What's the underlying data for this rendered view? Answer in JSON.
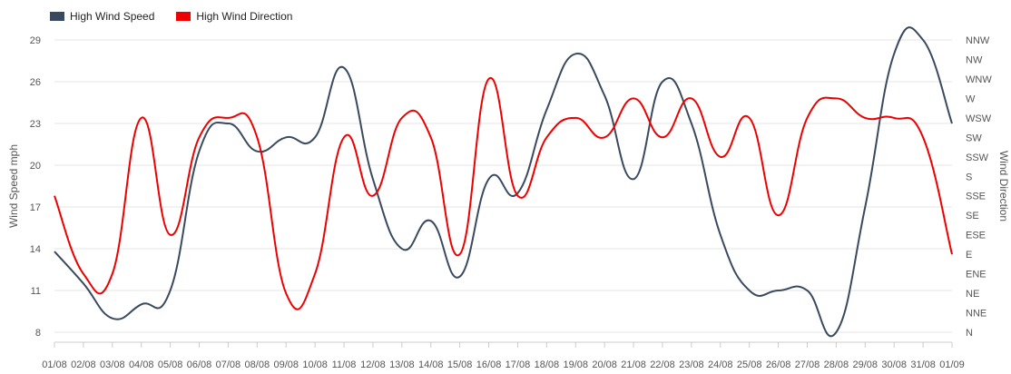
{
  "chart_data": {
    "type": "line",
    "x": [
      "01/08",
      "02/08",
      "03/08",
      "04/08",
      "05/08",
      "06/08",
      "07/08",
      "08/08",
      "09/08",
      "10/08",
      "11/08",
      "12/08",
      "13/08",
      "14/08",
      "15/08",
      "16/08",
      "17/08",
      "18/08",
      "19/08",
      "20/08",
      "21/08",
      "22/08",
      "23/08",
      "24/08",
      "25/08",
      "26/08",
      "27/08",
      "28/08",
      "29/08",
      "30/08",
      "31/08",
      "01/09"
    ],
    "xlabel": "",
    "ylabel": "Wind Speed mph",
    "y2label": "Wind Direction",
    "ylim": [
      8,
      29
    ],
    "yticks": [
      8,
      11,
      14,
      17,
      20,
      23,
      26,
      29
    ],
    "y2ticks": [
      "N",
      "NNE",
      "NE",
      "ENE",
      "E",
      "ESE",
      "SE",
      "SSE",
      "S",
      "SSW",
      "SW",
      "WSW",
      "W",
      "WNW",
      "NW",
      "NNW"
    ],
    "grid": true,
    "legend_position": "top-left",
    "series": [
      {
        "name": "High Wind Speed",
        "axis": "left",
        "color": "#3a4a5e",
        "values": [
          13.8,
          11.5,
          9.0,
          10.0,
          11.0,
          21.0,
          23.0,
          21.0,
          22.0,
          22.0,
          27.0,
          19.0,
          14.0,
          16.0,
          12.0,
          19.0,
          18.0,
          24.0,
          28.0,
          25.0,
          19.0,
          26.0,
          23.0,
          15.0,
          11.0,
          11.0,
          11.0,
          8.0,
          17.0,
          28.0,
          29.0,
          23.0
        ]
      },
      {
        "name": "High Wind Direction",
        "axis": "right",
        "color": "#ee0000",
        "values": [
          "SSE",
          "ENE",
          "ENE",
          "WSW",
          "ESE",
          "SW",
          "WSW",
          "SW",
          "NE",
          "ENE",
          "SW",
          "SSE",
          "WSW",
          "SW",
          "E",
          "WNW",
          "SSE",
          "SW",
          "WSW",
          "SW",
          "W",
          "SW",
          "W",
          "SSW",
          "WSW",
          "SE",
          "WSW",
          "W",
          "WSW",
          "WSW",
          "SW",
          "E"
        ]
      }
    ]
  }
}
